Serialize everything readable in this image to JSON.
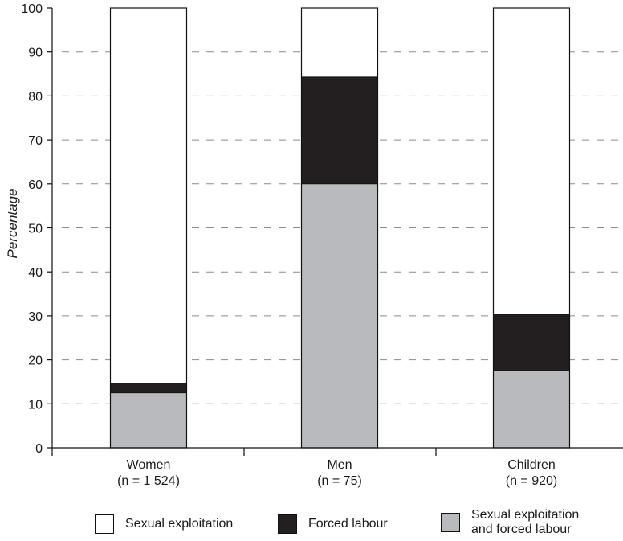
{
  "chart_data": {
    "type": "bar",
    "stacked": true,
    "title": "",
    "xlabel": "",
    "ylabel": "Percentage",
    "ylim": [
      0,
      100
    ],
    "yticks": [
      0,
      10,
      20,
      30,
      40,
      50,
      60,
      70,
      80,
      90,
      100
    ],
    "grid": "horizontal dashed",
    "legend_position": "bottom",
    "categories": [
      {
        "name": "Women",
        "n": "(n = 1 524)"
      },
      {
        "name": "Men",
        "n": "(n = 75)"
      },
      {
        "name": "Children",
        "n": "(n = 920)"
      }
    ],
    "series": [
      {
        "name": "Sexual exploitation and forced labour",
        "color": "#b9babd",
        "values": [
          12.5,
          60.0,
          17.5
        ]
      },
      {
        "name": "Forced labour",
        "color": "#231f20",
        "values": [
          2.2,
          24.3,
          12.8
        ]
      },
      {
        "name": "Sexual exploitation",
        "color": "#ffffff",
        "values": [
          85.3,
          15.7,
          69.7
        ]
      }
    ]
  },
  "legend": [
    {
      "label": "Sexual exploitation",
      "color": "#ffffff"
    },
    {
      "label": "Forced labour",
      "color": "#231f20"
    },
    {
      "label": "Sexual exploitation\nand forced labour",
      "color": "#b9babd"
    }
  ]
}
